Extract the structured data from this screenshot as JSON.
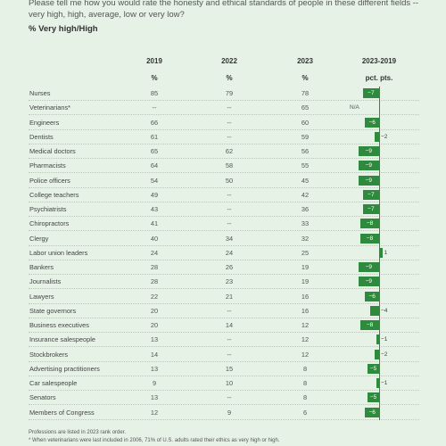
{
  "question": "Please tell me how you would rate the honesty and ethical standards of people in these different fields -- very high, high, average, low or very low?",
  "subtitle": "% Very high/High",
  "columns": {
    "y2019": "2019",
    "y2022": "2022",
    "y2023": "2023",
    "change": "2023-2019",
    "pct": "%",
    "pct_pts": "pct. pts."
  },
  "notes": [
    "Professions are listed in 2023 rank order.",
    "* When veterinarians were last included in 2006, 71% of U.S. adults rated their ethics as very high or high."
  ],
  "chart_data": {
    "type": "table",
    "title": "",
    "unit": "% Very high/High",
    "rows": [
      {
        "name": "Nurses",
        "y2019": "85",
        "y2022": "79",
        "y2023": "78",
        "change": -7,
        "change_label": "−7"
      },
      {
        "name": "Veterinarians*",
        "y2019": "--",
        "y2022": "--",
        "y2023": "65",
        "change": null,
        "change_label": "N/A"
      },
      {
        "name": "Engineers",
        "y2019": "66",
        "y2022": "--",
        "y2023": "60",
        "change": -6,
        "change_label": "−6"
      },
      {
        "name": "Dentists",
        "y2019": "61",
        "y2022": "--",
        "y2023": "59",
        "change": -2,
        "change_label": "−2"
      },
      {
        "name": "Medical doctors",
        "y2019": "65",
        "y2022": "62",
        "y2023": "56",
        "change": -9,
        "change_label": "−9"
      },
      {
        "name": "Pharmacists",
        "y2019": "64",
        "y2022": "58",
        "y2023": "55",
        "change": -9,
        "change_label": "−9"
      },
      {
        "name": "Police officers",
        "y2019": "54",
        "y2022": "50",
        "y2023": "45",
        "change": -9,
        "change_label": "−9"
      },
      {
        "name": "College teachers",
        "y2019": "49",
        "y2022": "--",
        "y2023": "42",
        "change": -7,
        "change_label": "−7"
      },
      {
        "name": "Psychiatrists",
        "y2019": "43",
        "y2022": "--",
        "y2023": "36",
        "change": -7,
        "change_label": "−7"
      },
      {
        "name": "Chiropractors",
        "y2019": "41",
        "y2022": "--",
        "y2023": "33",
        "change": -8,
        "change_label": "−8"
      },
      {
        "name": "Clergy",
        "y2019": "40",
        "y2022": "34",
        "y2023": "32",
        "change": -8,
        "change_label": "−8"
      },
      {
        "name": "Labor union leaders",
        "y2019": "24",
        "y2022": "24",
        "y2023": "25",
        "change": 1,
        "change_label": "1"
      },
      {
        "name": "Bankers",
        "y2019": "28",
        "y2022": "26",
        "y2023": "19",
        "change": -9,
        "change_label": "−9"
      },
      {
        "name": "Journalists",
        "y2019": "28",
        "y2022": "23",
        "y2023": "19",
        "change": -9,
        "change_label": "−9"
      },
      {
        "name": "Lawyers",
        "y2019": "22",
        "y2022": "21",
        "y2023": "16",
        "change": -6,
        "change_label": "−6"
      },
      {
        "name": "State governors",
        "y2019": "20",
        "y2022": "--",
        "y2023": "16",
        "change": -4,
        "change_label": "−4"
      },
      {
        "name": "Business executives",
        "y2019": "20",
        "y2022": "14",
        "y2023": "12",
        "change": -8,
        "change_label": "−8"
      },
      {
        "name": "Insurance salespeople",
        "y2019": "13",
        "y2022": "--",
        "y2023": "12",
        "change": -1,
        "change_label": "−1"
      },
      {
        "name": "Stockbrokers",
        "y2019": "14",
        "y2022": "--",
        "y2023": "12",
        "change": -2,
        "change_label": "−2"
      },
      {
        "name": "Advertising practitioners",
        "y2019": "13",
        "y2022": "15",
        "y2023": "8",
        "change": -5,
        "change_label": "−5"
      },
      {
        "name": "Car salespeople",
        "y2019": "9",
        "y2022": "10",
        "y2023": "8",
        "change": -1,
        "change_label": "−1"
      },
      {
        "name": "Senators",
        "y2019": "13",
        "y2022": "--",
        "y2023": "8",
        "change": -5,
        "change_label": "−5"
      },
      {
        "name": "Members of Congress",
        "y2019": "12",
        "y2022": "9",
        "y2023": "6",
        "change": -6,
        "change_label": "−6"
      }
    ]
  },
  "colors": {
    "bar": "#2e8a3c",
    "background": "#e6f2e6"
  }
}
